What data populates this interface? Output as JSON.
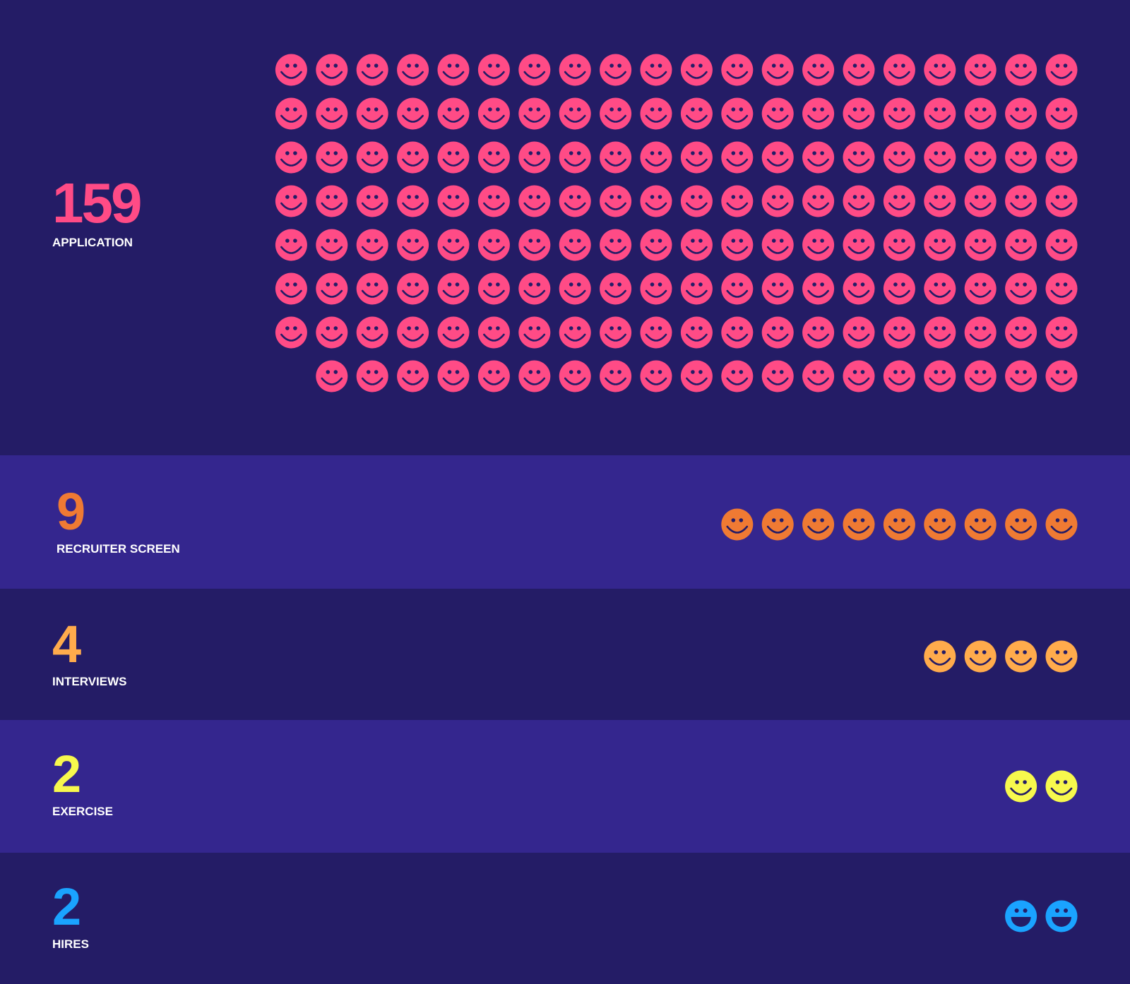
{
  "chart_data": {
    "type": "pictograph",
    "title": "",
    "stages": [
      {
        "value": 159,
        "value_label": "159",
        "label": "APPLICATION",
        "color": "#ff4b86",
        "icon": "smiley-face-icon",
        "icons_per_row": 20,
        "band": "dark"
      },
      {
        "value": 9,
        "value_label": "9",
        "label": "RECRUITER SCREEN",
        "color": "#ef7a33",
        "icon": "smiley-face-icon",
        "icons_per_row": 20,
        "band": "light"
      },
      {
        "value": 4,
        "value_label": "4",
        "label": "INTERVIEWS",
        "color": "#ffab4c",
        "icon": "smiley-face-icon",
        "icons_per_row": 20,
        "band": "dark"
      },
      {
        "value": 2,
        "value_label": "2",
        "label": "EXERCISE",
        "color": "#f7f84d",
        "icon": "smiley-face-icon",
        "icons_per_row": 20,
        "band": "light"
      },
      {
        "value": 2,
        "value_label": "2",
        "label": "HIRES",
        "color": "#1aa3ff",
        "icon": "grinning-face-icon",
        "icons_per_row": 20,
        "band": "dark"
      }
    ]
  },
  "colors": {
    "background_dark": "#241c66",
    "background_light": "#34268e",
    "label_text": "#ffffff",
    "face_features": "#241c66"
  }
}
